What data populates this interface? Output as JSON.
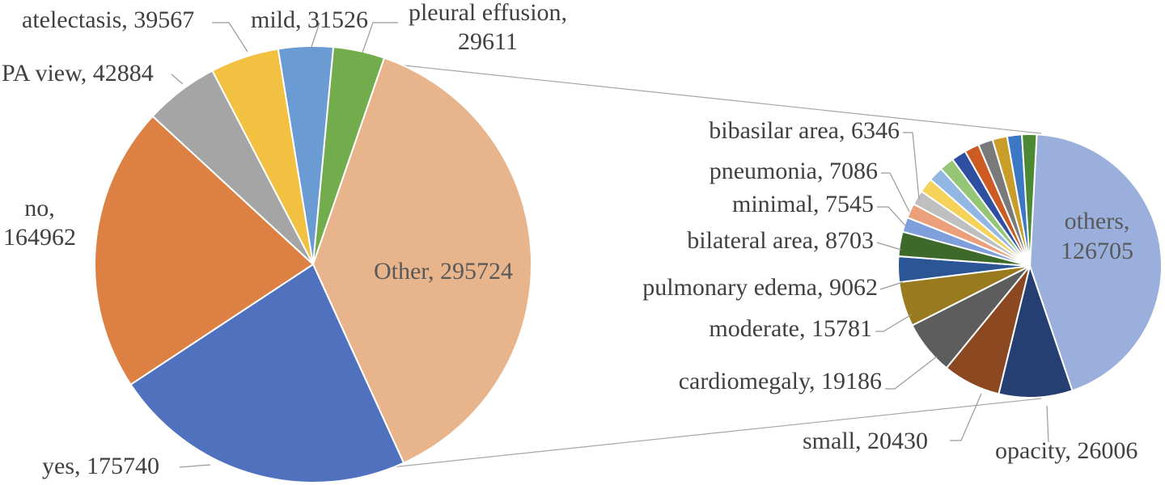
{
  "chart_data": [
    {
      "type": "pie",
      "slices": [
        {
          "label": "Other",
          "value": 295724,
          "color": "#e8b48c"
        },
        {
          "label": "yes",
          "value": 175740,
          "color": "#4f71be"
        },
        {
          "label": "no",
          "value": 164962,
          "color": "#dd8043"
        },
        {
          "label": "PA view",
          "value": 42884,
          "color": "#a5a5a5"
        },
        {
          "label": "atelectasis",
          "value": 39567,
          "color": "#f3c141"
        },
        {
          "label": "mild",
          "value": 31526,
          "color": "#6a9bd2"
        },
        {
          "label": "pleural effusion",
          "value": 29611,
          "color": "#72ac4d"
        }
      ],
      "label_texts": [
        "Other, 295724",
        "yes, 175740",
        "no,",
        "164962",
        "PA view, 42884",
        "atelectasis, 39567",
        "mild, 31526",
        "pleural effusion,",
        "29611"
      ]
    },
    {
      "type": "pie",
      "slices": [
        {
          "label": "others",
          "value": 126705,
          "color": "#9aafdc"
        },
        {
          "label": "opacity",
          "value": 26006,
          "color": "#263f73"
        },
        {
          "label": "small",
          "value": 20430,
          "color": "#8c4820"
        },
        {
          "label": "cardiomegaly",
          "value": 19186,
          "color": "#5d5d5d"
        },
        {
          "label": "moderate",
          "value": 15781,
          "color": "#9a7a1e"
        },
        {
          "label": "pulmonary edema",
          "value": 9062,
          "color": "#2c5595"
        },
        {
          "label": "bilateral area",
          "value": 8703,
          "color": "#3d6a2b"
        },
        {
          "label": "bibasilar area / pneumonia / minimal (small unlabeled slices)",
          "value": 5200,
          "color": "#7f9fdc"
        },
        {
          "label": "",
          "value": 5200,
          "color": "#eba07b"
        },
        {
          "label": "",
          "value": 5200,
          "color": "#bfbfbf"
        },
        {
          "label": "",
          "value": 5200,
          "color": "#f5d35a"
        },
        {
          "label": "",
          "value": 5200,
          "color": "#92b7e2"
        },
        {
          "label": "",
          "value": 5200,
          "color": "#95c676"
        },
        {
          "label": "",
          "value": 5200,
          "color": "#2f4fa0"
        },
        {
          "label": "",
          "value": 5200,
          "color": "#cc5c24"
        },
        {
          "label": "",
          "value": 5200,
          "color": "#7a7a7a"
        },
        {
          "label": "",
          "value": 5200,
          "color": "#c99d2a"
        },
        {
          "label": "",
          "value": 5200,
          "color": "#3c79c4"
        },
        {
          "label": "",
          "value": 5200,
          "color": "#4b8a32"
        }
      ],
      "label_texts": [
        "others,",
        "126705",
        "opacity, 26006",
        "small, 20430",
        "cardiomegaly, 19186",
        "moderate, 15781",
        "pulmonary edema, 9062",
        "bilateral area, 8703",
        "minimal, 7545",
        "pneumonia, 7086",
        "bibasilar area, 6346"
      ]
    }
  ]
}
